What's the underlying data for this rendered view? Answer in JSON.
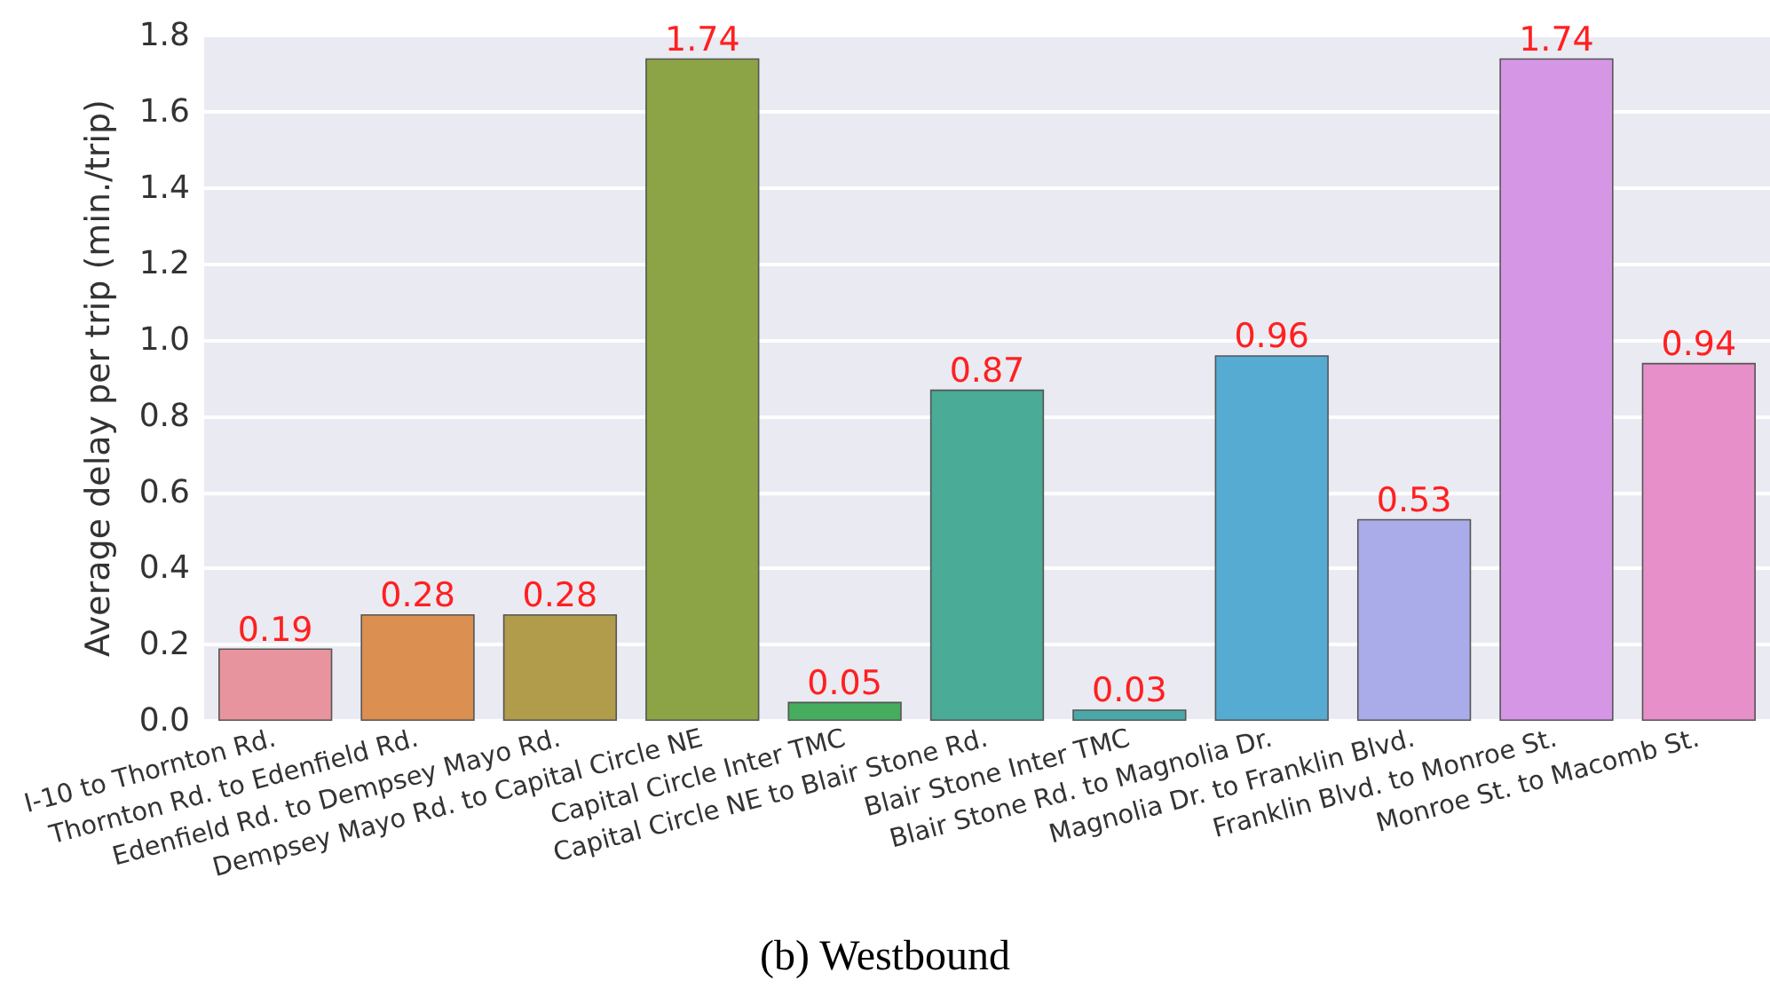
{
  "chart_data": {
    "type": "bar",
    "title": "(b) Westbound",
    "ylabel": "Average delay per trip (min./trip)",
    "categories": [
      "I-10 to Thornton Rd.",
      "Thornton Rd. to Edenfield Rd.",
      "Edenfield Rd. to Dempsey Mayo Rd.",
      "Dempsey Mayo Rd. to Capital Circle NE",
      "Capital Circle Inter TMC",
      "Capital Circle NE to Blair Stone Rd.",
      "Blair Stone Inter TMC",
      "Blair Stone Rd. to Magnolia Dr.",
      "Magnolia Dr. to Franklin Blvd.",
      "Franklin Blvd. to Monroe St.",
      "Monroe St. to Macomb St."
    ],
    "values": [
      0.19,
      0.28,
      0.28,
      1.74,
      0.05,
      0.87,
      0.03,
      0.96,
      0.53,
      1.74,
      0.94
    ],
    "colors": [
      "#e8949f",
      "#db8f50",
      "#b09c4a",
      "#8ca445",
      "#47ad5e",
      "#4aab97",
      "#4aa8a8",
      "#56abd2",
      "#a9ace8",
      "#d596e6",
      "#e78fc8"
    ],
    "ylim": [
      0,
      1.8
    ],
    "yticks": [
      {
        "value": 0,
        "label": "0.0"
      },
      0.2,
      0.4,
      0.6,
      0.8,
      {
        "value": 1,
        "label": "1.0"
      },
      1.2,
      1.4,
      1.6,
      1.8
    ],
    "grid": "y",
    "data_labels": true
  }
}
